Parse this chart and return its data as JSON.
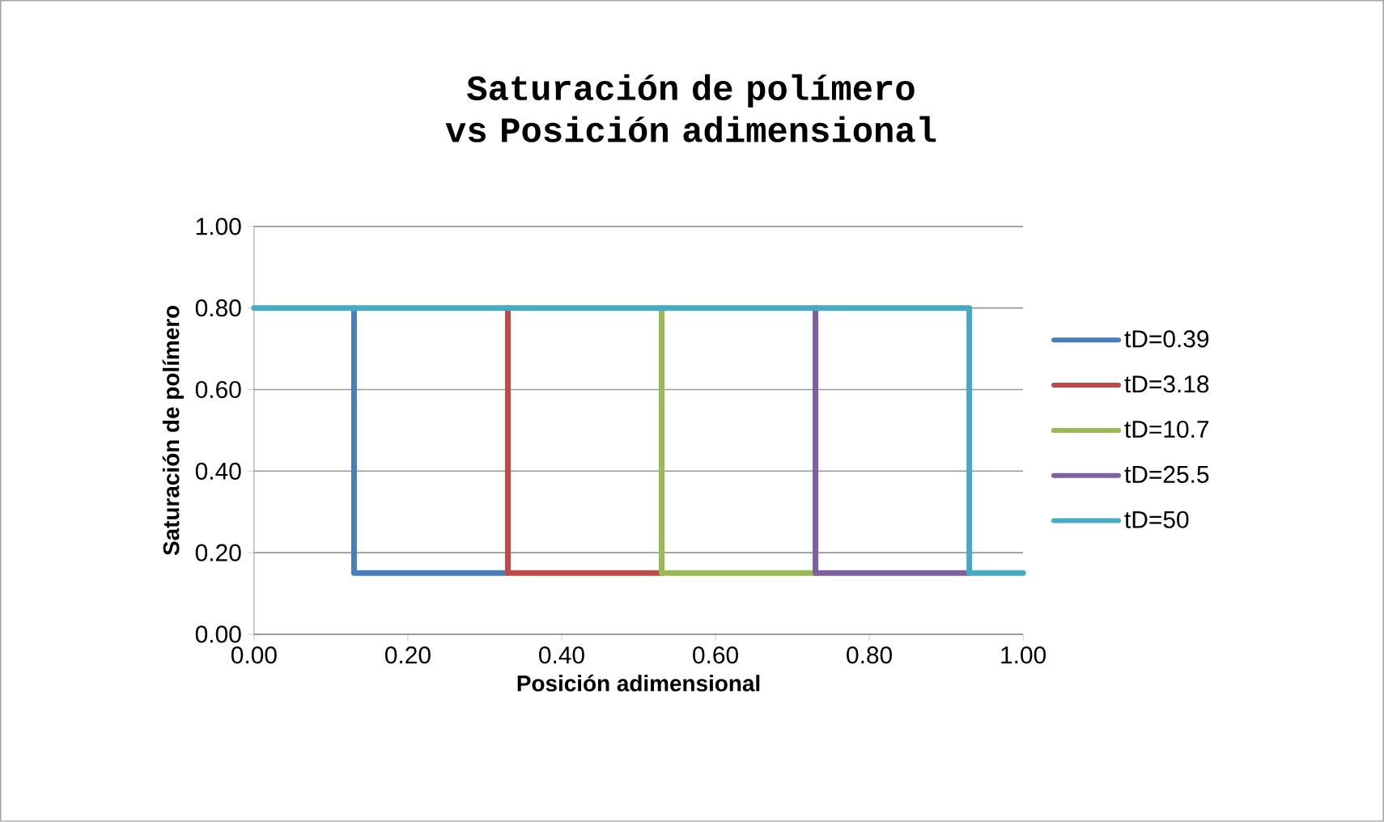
{
  "chart_data": {
    "type": "line",
    "title": "Saturación de polímero vs Posición adimensional",
    "xlabel": "Posición adimensional",
    "ylabel": "Saturación de polímero",
    "xlim": [
      0,
      1
    ],
    "ylim": [
      0,
      1
    ],
    "xticks": [
      {
        "value": 0,
        "label": "0.00"
      },
      {
        "value": 0.2,
        "label": "0.20"
      },
      {
        "value": 0.4,
        "label": "0.40"
      },
      {
        "value": 0.6,
        "label": "0.60"
      },
      {
        "value": 0.8,
        "label": "0.80"
      },
      {
        "value": 1,
        "label": "1.00"
      }
    ],
    "yticks": [
      {
        "value": 0,
        "label": "0.00"
      },
      {
        "value": 0.2,
        "label": "0.20"
      },
      {
        "value": 0.4,
        "label": "0.40"
      },
      {
        "value": 0.6,
        "label": "0.60"
      },
      {
        "value": 0.8,
        "label": "0.80"
      },
      {
        "value": 1,
        "label": "1.00"
      }
    ],
    "grid": "y",
    "legend": "right",
    "marker": "none",
    "line_style": "solid",
    "series": [
      {
        "name": "tD=0.39",
        "color": "#4a7ebb",
        "x": [
          0.13,
          0.13,
          0.33
        ],
        "values": [
          0.8,
          0.15,
          0.15
        ]
      },
      {
        "name": "tD=3.18",
        "color": "#be4b48",
        "x": [
          0.33,
          0.33,
          0.53
        ],
        "values": [
          0.8,
          0.15,
          0.15
        ]
      },
      {
        "name": "tD=10.7",
        "color": "#98b954",
        "x": [
          0.53,
          0.53,
          0.73
        ],
        "values": [
          0.8,
          0.15,
          0.15
        ]
      },
      {
        "name": "tD=25.5",
        "color": "#7d60a0",
        "x": [
          0.73,
          0.73,
          0.93
        ],
        "values": [
          0.8,
          0.15,
          0.15
        ]
      },
      {
        "name": "tD=50",
        "color": "#46aac5",
        "x": [
          0,
          0.93,
          0.93,
          1
        ],
        "values": [
          0.8,
          0.8,
          0.15,
          0.15
        ]
      }
    ]
  }
}
